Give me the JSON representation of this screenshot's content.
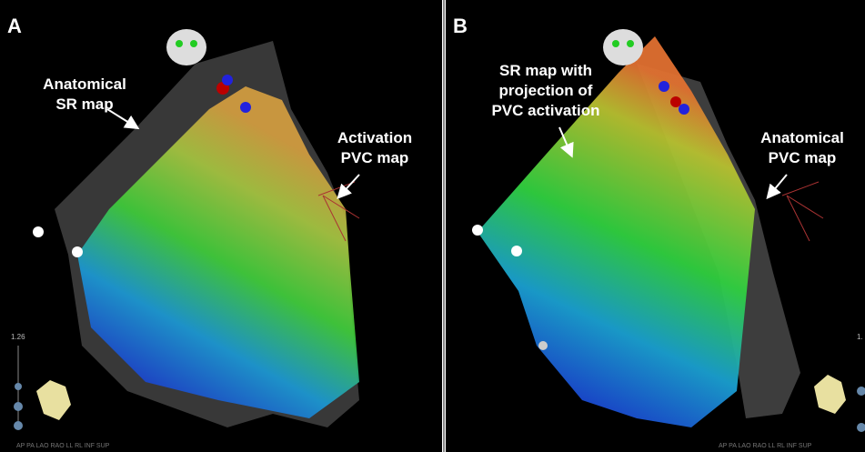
{
  "panels": [
    {
      "label": "A",
      "annotations": [
        {
          "lines": [
            "Anatomical",
            "SR map"
          ]
        },
        {
          "lines": [
            "Activation",
            "PVC map"
          ]
        }
      ],
      "scale_value": "1.26",
      "view_bar": "AP PA LAO RAO LL RL INF SUP"
    },
    {
      "label": "B",
      "annotations": [
        {
          "lines": [
            "SR map with",
            "projection of",
            "PVC activation"
          ]
        },
        {
          "lines": [
            "Anatomical",
            "PVC map"
          ]
        }
      ],
      "scale_value": "1.",
      "view_bar": "AP PA LAO RAO LL RL INF SUP"
    }
  ]
}
